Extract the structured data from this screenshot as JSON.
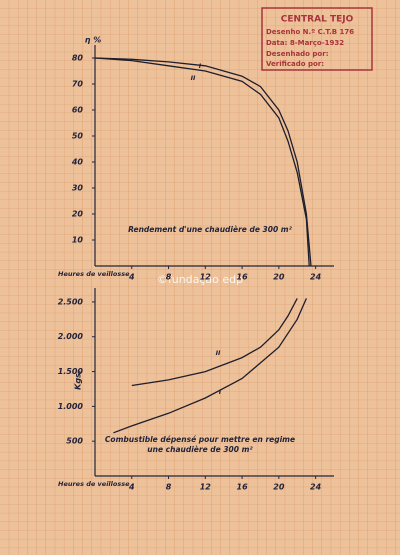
{
  "chart_data": [
    {
      "type": "line",
      "title": "Rendement d'une chaudière de 300 m²",
      "y_label": "η %",
      "x_label": "Heures de veillosse",
      "xlim": [
        0,
        26
      ],
      "xticks": [
        4,
        8,
        12,
        16,
        20,
        24
      ],
      "ylim": [
        0,
        85
      ],
      "yticks": [
        10,
        20,
        30,
        40,
        50,
        60,
        70,
        80
      ],
      "series": [
        {
          "name": "I",
          "color": "#1e1e2e",
          "x": [
            0,
            4,
            8,
            12,
            16,
            18,
            20,
            21,
            22,
            23,
            23.5
          ],
          "values": [
            80,
            79.5,
            78.5,
            77,
            73,
            69,
            60,
            52,
            40,
            20,
            0
          ]
        },
        {
          "name": "II",
          "color": "#1e1e2e",
          "x": [
            0,
            4,
            8,
            12,
            16,
            18,
            20,
            21,
            22,
            23,
            23.3
          ],
          "values": [
            80,
            79,
            77,
            75,
            71,
            66,
            57,
            48,
            36,
            18,
            0
          ]
        }
      ]
    },
    {
      "type": "line",
      "title": "Combustible dépensé pour mettre en regime une chaudière de 300 m²",
      "y_label": "Kgs.",
      "x_label": "Heures de veillosse",
      "xlim": [
        0,
        26
      ],
      "xticks": [
        4,
        8,
        12,
        16,
        20,
        24
      ],
      "ylim": [
        0,
        2700
      ],
      "yticks": [
        500,
        {
          "value": 1000,
          "label": "1.000"
        },
        {
          "value": 1500,
          "label": "1.500"
        },
        {
          "value": 2000,
          "label": "2.000"
        },
        {
          "value": 2500,
          "label": "2.500"
        }
      ],
      "series": [
        {
          "name": "I",
          "color": "#1e1e2e",
          "x": [
            2,
            4,
            8,
            12,
            16,
            20,
            22,
            23
          ],
          "values": [
            620,
            720,
            900,
            1120,
            1400,
            1850,
            2250,
            2550
          ]
        },
        {
          "name": "II",
          "color": "#1e1e2e",
          "x": [
            4,
            8,
            12,
            16,
            18,
            20,
            21,
            22
          ],
          "values": [
            1300,
            1380,
            1500,
            1700,
            1850,
            2100,
            2300,
            2550
          ]
        }
      ]
    }
  ],
  "stamp": {
    "title": "CENTRAL TEJO",
    "drawing": "Desenho N.º C.T.B 176",
    "date": "Data: 8-Março-1932",
    "drawn_by": "Desenhado por:",
    "checked_by": "Verificado por:"
  },
  "watermark": "©fundação edp"
}
